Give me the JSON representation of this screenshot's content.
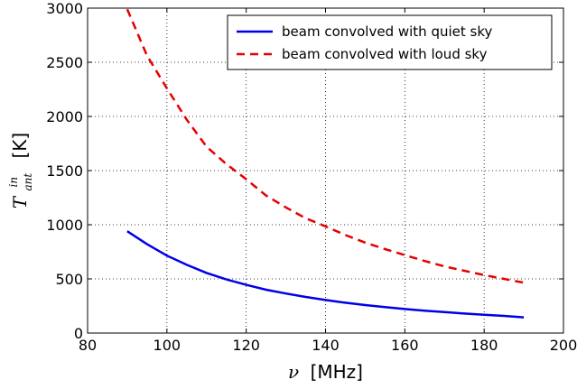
{
  "chart_data": {
    "type": "line",
    "title": "",
    "xlabel": {
      "symbol": "ν",
      "unit": "[MHz]"
    },
    "ylabel": {
      "symbol": "T",
      "sub": "ant",
      "sup": "in",
      "unit": "[K]"
    },
    "xlim": [
      80,
      200
    ],
    "ylim": [
      0,
      3000
    ],
    "xticks": [
      80,
      100,
      120,
      140,
      160,
      180,
      200
    ],
    "yticks": [
      0,
      500,
      1000,
      1500,
      2000,
      2500,
      3000
    ],
    "grid": true,
    "legend_position": "top-right",
    "series": [
      {
        "name": "beam convolved with quiet sky",
        "style": "solid",
        "color": "#0000e6",
        "x": [
          90,
          95,
          100,
          105,
          110,
          115,
          120,
          125,
          130,
          135,
          140,
          145,
          150,
          155,
          160,
          165,
          170,
          175,
          180,
          185,
          190
        ],
        "y": [
          940,
          820,
          715,
          630,
          555,
          495,
          445,
          400,
          365,
          333,
          305,
          280,
          258,
          240,
          222,
          207,
          193,
          180,
          168,
          158,
          145
        ]
      },
      {
        "name": "beam convolved with loud sky",
        "style": "dashed",
        "color": "#e60000",
        "x": [
          90,
          95,
          100,
          105,
          110,
          115,
          120,
          125,
          130,
          135,
          140,
          145,
          150,
          155,
          160,
          165,
          170,
          175,
          180,
          185,
          190
        ],
        "y": [
          2990,
          2560,
          2260,
          1970,
          1720,
          1560,
          1420,
          1270,
          1160,
          1060,
          985,
          905,
          835,
          775,
          720,
          665,
          615,
          575,
          535,
          500,
          465
        ]
      }
    ]
  }
}
